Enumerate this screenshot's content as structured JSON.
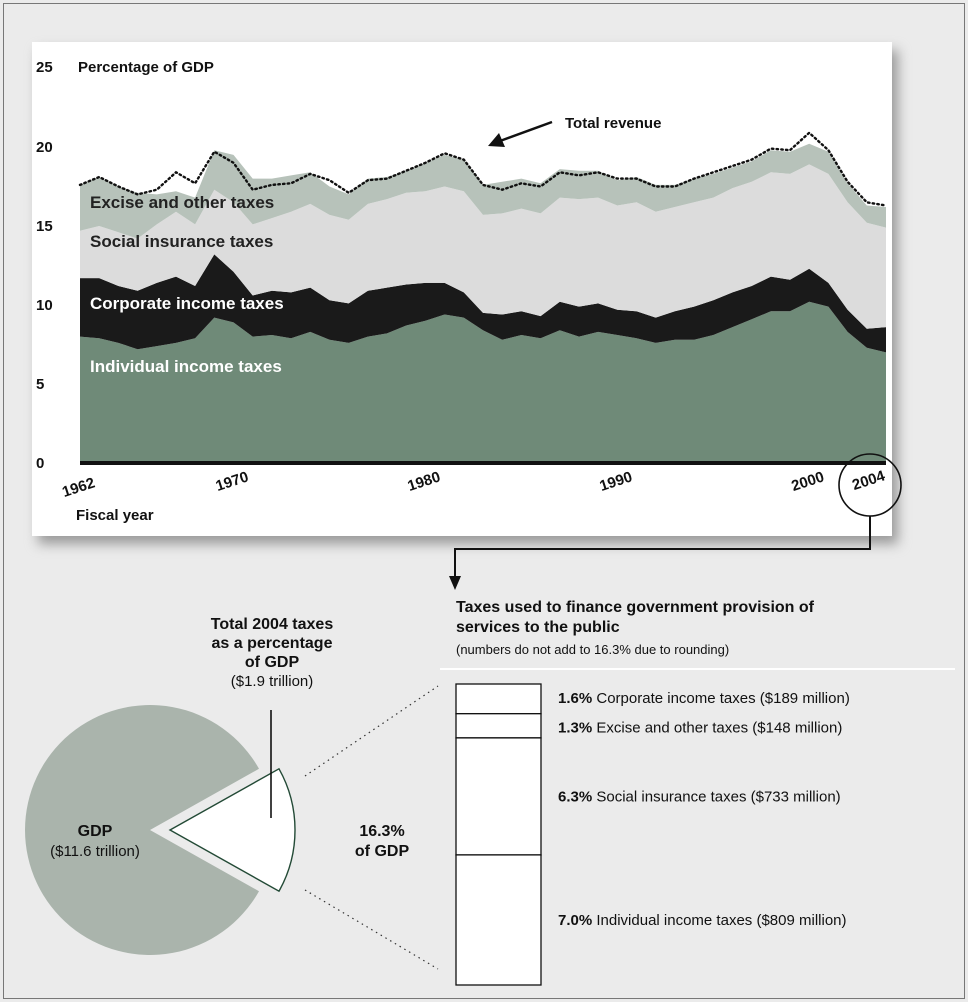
{
  "chart_data": [
    {
      "type": "area",
      "title": "Percentage of GDP",
      "xlabel": "Fiscal year",
      "ylabel": "Percentage of GDP",
      "ylim": [
        0,
        25
      ],
      "xlim": [
        1962,
        2004
      ],
      "y_ticks": [
        "0",
        "5",
        "10",
        "15",
        "20",
        "25"
      ],
      "y_tick_values": [
        0,
        5,
        10,
        15,
        20,
        25
      ],
      "x_ticks": [
        "1962",
        "1970",
        "1980",
        "1990",
        "2000",
        "2004"
      ],
      "x_tick_values": [
        1962,
        1970,
        1980,
        1990,
        2000,
        2004
      ],
      "highlight_tick": "2004",
      "stacked": true,
      "grid": false,
      "legend": "inline labels",
      "x": [
        1962,
        1963,
        1964,
        1965,
        1966,
        1967,
        1968,
        1969,
        1970,
        1971,
        1972,
        1973,
        1974,
        1975,
        1976,
        1977,
        1978,
        1979,
        1980,
        1981,
        1982,
        1983,
        1984,
        1985,
        1986,
        1987,
        1988,
        1989,
        1990,
        1991,
        1992,
        1993,
        1994,
        1995,
        1996,
        1997,
        1998,
        1999,
        2000,
        2001,
        2002,
        2003,
        2004
      ],
      "series": [
        {
          "name": "Individual income taxes",
          "color": "#6f8a78",
          "values": [
            8.0,
            7.9,
            7.6,
            7.2,
            7.4,
            7.6,
            7.9,
            9.2,
            8.9,
            8.0,
            8.1,
            7.9,
            8.3,
            7.8,
            7.6,
            8.0,
            8.2,
            8.7,
            9.0,
            9.4,
            9.2,
            8.4,
            7.8,
            8.1,
            7.9,
            8.4,
            8.0,
            8.3,
            8.1,
            7.9,
            7.6,
            7.8,
            7.8,
            8.1,
            8.6,
            9.1,
            9.6,
            9.6,
            10.2,
            9.9,
            8.3,
            7.3,
            7.0
          ]
        },
        {
          "name": "Corporate income taxes",
          "color": "#1a1a1a",
          "values": [
            3.7,
            3.8,
            3.6,
            3.7,
            4.0,
            4.2,
            3.3,
            4.0,
            3.2,
            2.6,
            2.8,
            2.9,
            2.8,
            2.5,
            2.5,
            2.9,
            2.9,
            2.6,
            2.4,
            2.0,
            1.6,
            1.1,
            1.6,
            1.5,
            1.4,
            1.8,
            1.9,
            1.8,
            1.6,
            1.7,
            1.6,
            1.8,
            2.1,
            2.2,
            2.2,
            2.1,
            2.2,
            2.0,
            2.1,
            1.5,
            1.4,
            1.2,
            1.6
          ]
        },
        {
          "name": "Social insurance taxes",
          "color": "#dcdcdc",
          "values": [
            3.0,
            3.3,
            3.4,
            3.3,
            3.7,
            4.1,
            3.9,
            4.1,
            4.4,
            4.5,
            4.6,
            5.1,
            5.3,
            5.4,
            5.3,
            5.5,
            5.6,
            5.8,
            5.8,
            6.1,
            6.4,
            6.2,
            6.4,
            6.5,
            6.5,
            6.6,
            6.8,
            6.7,
            6.6,
            6.9,
            6.7,
            6.6,
            6.6,
            6.5,
            6.6,
            6.6,
            6.6,
            6.7,
            6.6,
            6.9,
            6.8,
            6.7,
            6.3
          ]
        },
        {
          "name": "Excise and other taxes",
          "color": "#b7c2ba",
          "values": [
            2.9,
            3.1,
            2.9,
            2.9,
            1.9,
            1.3,
            1.7,
            2.5,
            3.0,
            2.9,
            2.5,
            2.3,
            2.0,
            1.8,
            1.6,
            1.6,
            1.4,
            1.4,
            1.8,
            2.0,
            2.0,
            1.9,
            2.0,
            1.9,
            1.9,
            1.8,
            1.8,
            1.7,
            1.6,
            1.6,
            1.7,
            1.4,
            1.5,
            1.5,
            1.3,
            1.3,
            1.4,
            1.4,
            1.3,
            1.4,
            1.2,
            1.1,
            1.3
          ]
        }
      ],
      "total_line": {
        "name": "Total revenue",
        "style": "dotted",
        "values": [
          17.6,
          18.1,
          17.5,
          17.0,
          17.3,
          18.4,
          17.7,
          19.7,
          19.0,
          17.3,
          17.6,
          17.7,
          18.3,
          17.9,
          17.1,
          17.9,
          18.0,
          18.5,
          19.0,
          19.6,
          19.2,
          17.6,
          17.3,
          17.7,
          17.5,
          18.4,
          18.2,
          18.4,
          18.0,
          18.0,
          17.5,
          17.5,
          18.0,
          18.4,
          18.8,
          19.2,
          19.9,
          19.8,
          20.9,
          19.8,
          17.8,
          16.5,
          16.3
        ]
      },
      "annotations": [
        "Total revenue"
      ]
    },
    {
      "type": "pie",
      "labels": [
        "GDP",
        "Total 2004 taxes"
      ],
      "values": [
        83.7,
        16.3
      ],
      "colors": [
        "#aab4ac",
        "#ffffff"
      ],
      "exploded": "Total 2004 taxes",
      "slice_labels": [
        {
          "title": "GDP",
          "subtitle": "($11.6 trillion)"
        },
        {
          "lines": [
            "Total 2004 taxes",
            "as a percentage",
            "of GDP"
          ],
          "subtitle": "($1.9 trillion)"
        }
      ],
      "callout": [
        "16.3%",
        "of GDP"
      ]
    },
    {
      "type": "bar",
      "stacked": true,
      "title_lines": [
        "Taxes used to finance government provision of",
        "services to the public"
      ],
      "note": "(numbers do not add to 16.3% due to rounding)",
      "items": [
        {
          "pct": "1.6%",
          "text": "Corporate income taxes ($189 million)",
          "value": 1.6
        },
        {
          "pct": "1.3%",
          "text": "Excise and other taxes ($148 million)",
          "value": 1.3
        },
        {
          "pct": "6.3%",
          "text": "Social insurance taxes ($733 million)",
          "value": 6.3
        },
        {
          "pct": "7.0%",
          "text": "Individual income taxes ($809 million)",
          "value": 7.0
        }
      ]
    }
  ]
}
